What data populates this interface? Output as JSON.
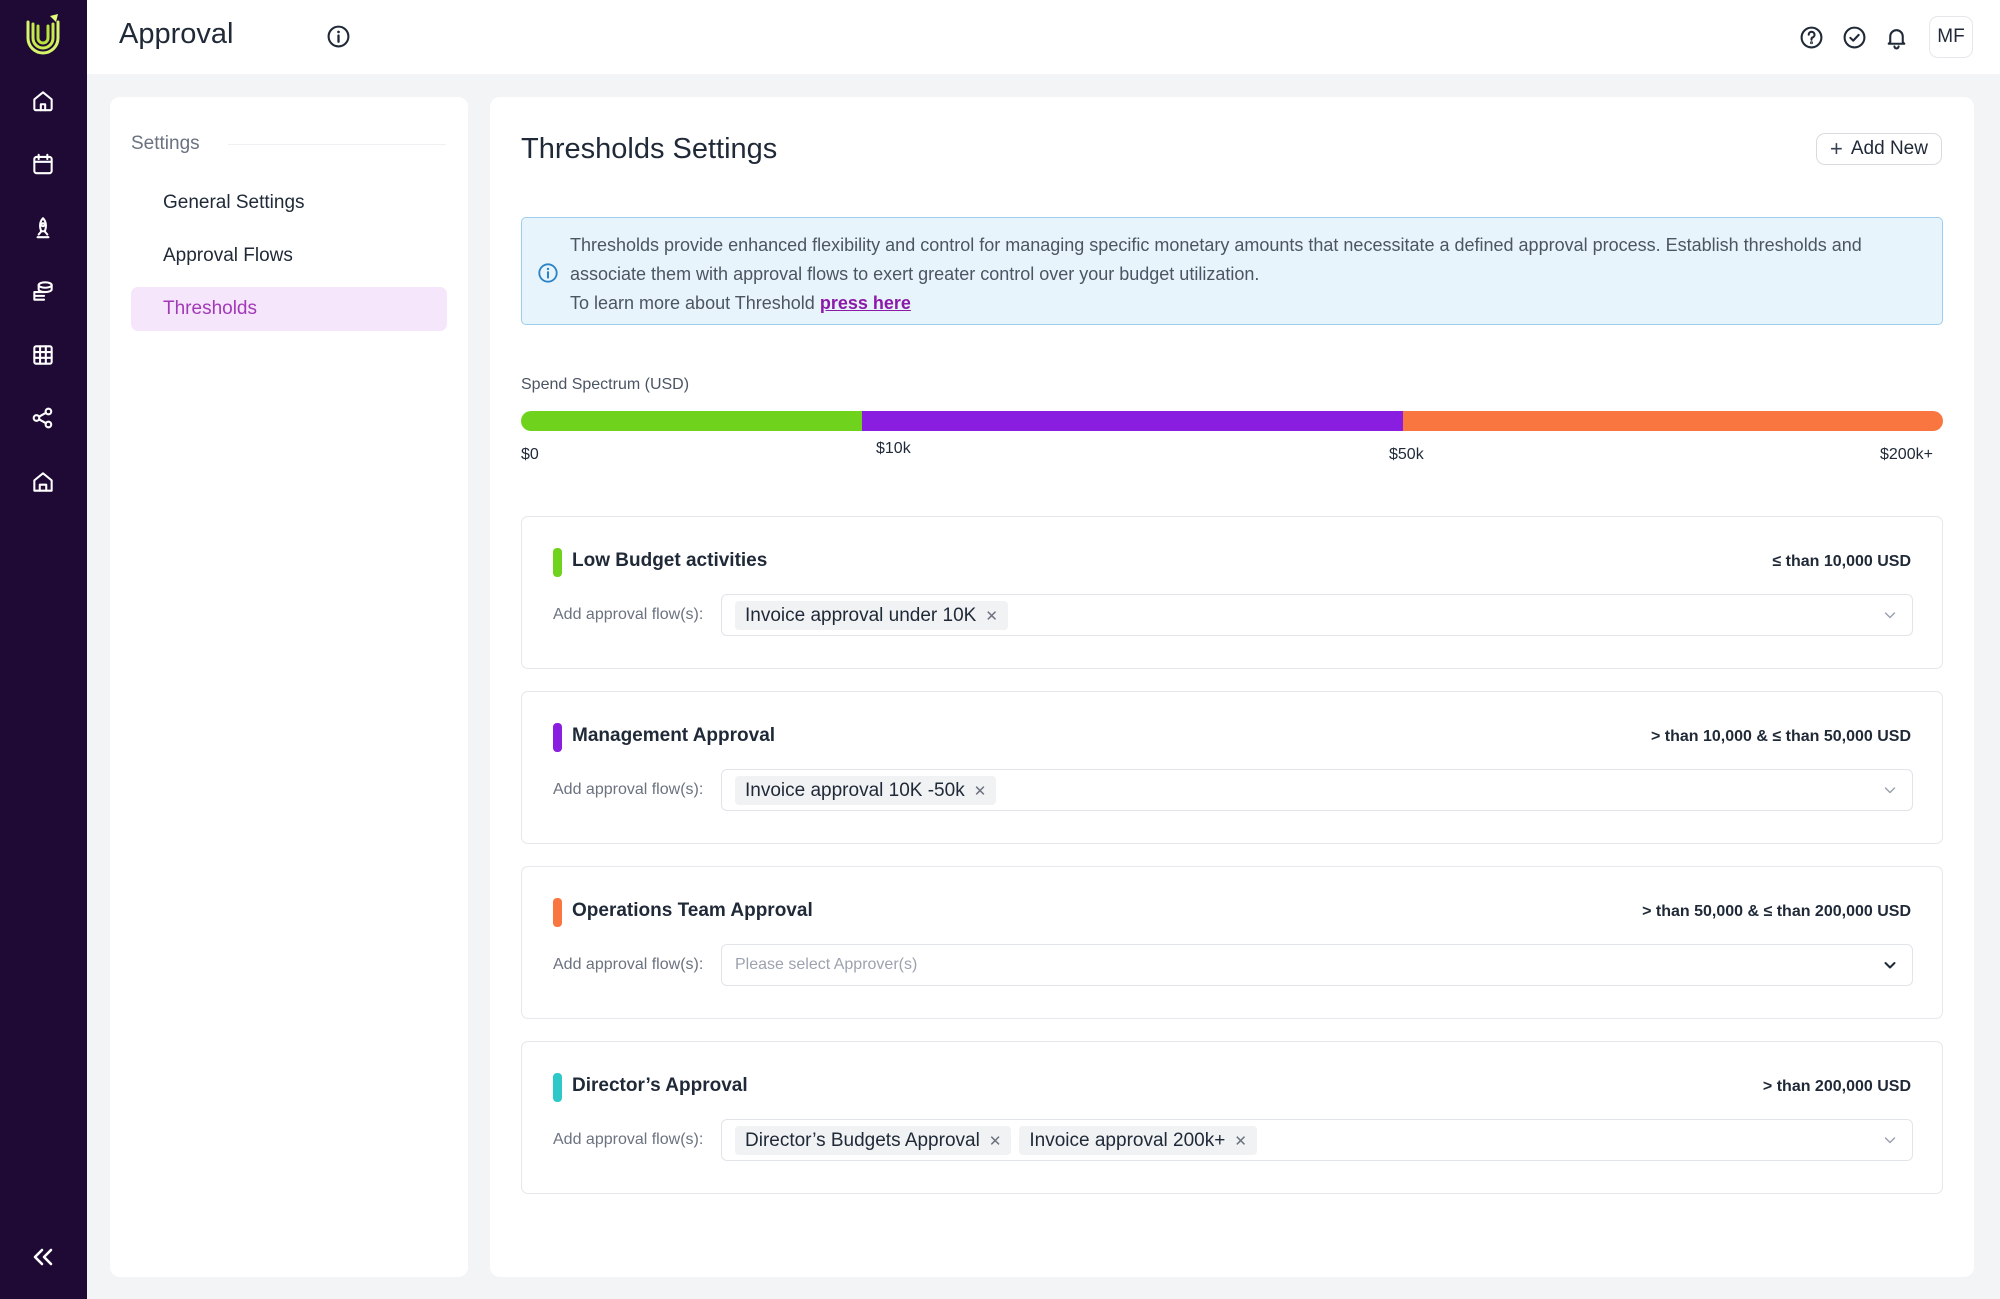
{
  "header": {
    "title": "Approval",
    "avatar_initials": "MF"
  },
  "icons": {
    "rail": [
      "home-icon",
      "calendar-icon",
      "rocket-icon",
      "budget-icon",
      "table-icon",
      "share-icon",
      "store-icon"
    ],
    "header": [
      "help-icon",
      "check-circle-icon",
      "bell-icon"
    ]
  },
  "settings": {
    "heading": "Settings",
    "items": [
      {
        "label": "General Settings",
        "active": false
      },
      {
        "label": "Approval Flows",
        "active": false
      },
      {
        "label": "Thresholds",
        "active": true
      }
    ]
  },
  "main": {
    "title": "Thresholds Settings",
    "add_button": "Add New",
    "banner": {
      "text": "Thresholds provide enhanced flexibility and control for managing specific monetary amounts that necessitate a defined approval process. Establish thresholds and associate them with approval flows to exert greater control over your budget utilization.",
      "learn_prefix": "To learn more about Threshold",
      "link": "press here"
    },
    "spectrum": {
      "label": "Spend Spectrum (USD)",
      "ticks": [
        "$0",
        "$10k",
        "$50k",
        "$200k+"
      ],
      "segments": [
        {
          "color": "#6fd31e",
          "fraction": 0.24
        },
        {
          "color": "#8a1ee0",
          "fraction": 0.38
        },
        {
          "color": "#fa7640",
          "fraction": 0.38
        }
      ]
    },
    "flow_label": "Add approval flow(s):",
    "placeholder": "Please select Approver(s)",
    "thresholds": [
      {
        "name": "Low Budget activities",
        "range": "≤ than 10,000 USD",
        "color": "#6fd31e",
        "flows": [
          "Invoice approval under 10K"
        ]
      },
      {
        "name": "Management Approval",
        "range": "> than 10,000 & ≤ than 50,000 USD",
        "color": "#8a1ee0",
        "flows": [
          "Invoice approval 10K -50k"
        ]
      },
      {
        "name": "Operations Team Approval",
        "range": "> than 50,000 & ≤ than 200,000 USD",
        "color": "#fa7640",
        "flows": []
      },
      {
        "name": "Director’s Approval",
        "range": "> than 200,000 USD",
        "color": "#2ec8c8",
        "flows": [
          "Director’s Budgets Approval",
          "Invoice approval 200k+"
        ]
      }
    ]
  }
}
